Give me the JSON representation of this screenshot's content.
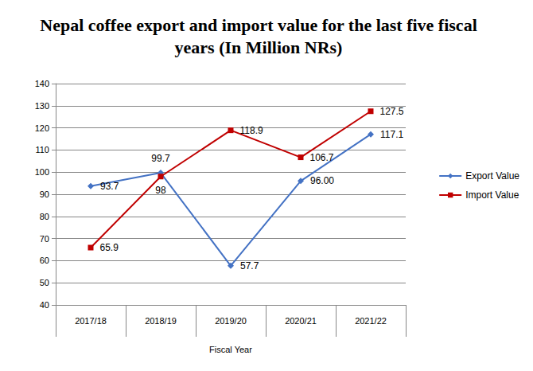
{
  "chart_data": {
    "type": "line",
    "title": "Nepal coffee export and import value for the last five fiscal years (In Million NRs)",
    "x_label": "Fiscal Year",
    "categories": [
      "2017/18",
      "2018/19",
      "2019/20",
      "2020/21",
      "2021/22"
    ],
    "series": [
      {
        "name": "Export Value",
        "color": "#4472c4",
        "marker": "diamond",
        "line_style": "solid",
        "values": [
          93.7,
          99.7,
          57.7,
          96.0,
          117.1
        ],
        "value_labels": [
          "93.7",
          "99.7",
          "57.7",
          "96.00",
          "117.1"
        ]
      },
      {
        "name": "Import Value",
        "color": "#c00000",
        "marker": "square",
        "line_style": "solid",
        "values": [
          65.9,
          98,
          118.9,
          106.7,
          127.5
        ]
      }
    ],
    "ylim": [
      40,
      140
    ],
    "yticks": [
      40,
      50,
      60,
      70,
      80,
      90,
      100,
      110,
      120,
      130,
      140
    ],
    "grid": true,
    "legend": "right",
    "data_labels": true
  }
}
